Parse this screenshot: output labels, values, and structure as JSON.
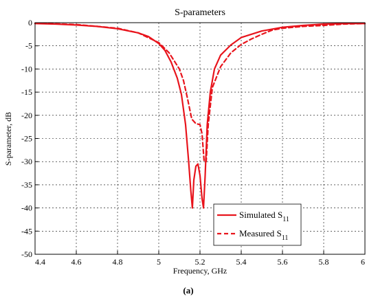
{
  "chart_data": {
    "type": "line",
    "title": "S-parameters",
    "xlabel": "Frequency, GHz",
    "ylabel": "S-parameter, dB",
    "caption": "(a)",
    "xlim": [
      4.4,
      6.0
    ],
    "ylim": [
      -50,
      0
    ],
    "xticks": [
      "4.4",
      "4.6",
      "4.8",
      "5",
      "5.2",
      "5.4",
      "5.6",
      "5.8",
      "6"
    ],
    "yticks": [
      "0",
      "-5",
      "-10",
      "-15",
      "-20",
      "-25",
      "-30",
      "-35",
      "-40",
      "-45",
      "-50"
    ],
    "grid": true,
    "legend_position": "bottom-right",
    "colors": {
      "series": "#e8141c",
      "axis": "#000000",
      "grid": "#000000"
    },
    "series": [
      {
        "name": "Simulated S",
        "name_sub": "11",
        "style": "solid",
        "x": [
          4.4,
          4.5,
          4.6,
          4.7,
          4.8,
          4.9,
          4.95,
          5.0,
          5.03,
          5.06,
          5.09,
          5.11,
          5.13,
          5.145,
          5.155,
          5.163,
          5.17,
          5.18,
          5.19,
          5.2,
          5.21,
          5.217,
          5.225,
          5.235,
          5.25,
          5.27,
          5.3,
          5.35,
          5.4,
          5.5,
          5.6,
          5.7,
          5.8,
          5.9,
          6.0
        ],
        "y": [
          -0.2,
          -0.3,
          -0.5,
          -0.8,
          -1.3,
          -2.2,
          -3.0,
          -4.5,
          -6.0,
          -8.5,
          -12.0,
          -15.5,
          -22.0,
          -30.0,
          -36.0,
          -40.0,
          -34.0,
          -31.0,
          -30.5,
          -33.0,
          -38.0,
          -40.0,
          -33.0,
          -22.0,
          -15.0,
          -10.0,
          -7.0,
          -4.8,
          -3.2,
          -1.8,
          -1.0,
          -0.6,
          -0.3,
          -0.2,
          -0.2
        ]
      },
      {
        "name": "Measured S",
        "name_sub": "11",
        "style": "dashed",
        "x": [
          4.4,
          4.6,
          4.8,
          4.9,
          5.0,
          5.05,
          5.1,
          5.12,
          5.14,
          5.16,
          5.18,
          5.2,
          5.21,
          5.22,
          5.23,
          5.24,
          5.26,
          5.3,
          5.35,
          5.4,
          5.45,
          5.5,
          5.55,
          5.6,
          5.7,
          5.8,
          5.9,
          6.0
        ],
        "y": [
          -0.1,
          -0.4,
          -1.2,
          -2.2,
          -4.3,
          -6.5,
          -10.0,
          -12.5,
          -16.5,
          -20.8,
          -21.8,
          -22.0,
          -24.0,
          -30.0,
          -30.0,
          -22.0,
          -14.0,
          -9.5,
          -6.5,
          -4.7,
          -3.5,
          -2.5,
          -1.6,
          -1.2,
          -0.8,
          -0.6,
          -0.3,
          -0.2
        ]
      }
    ]
  }
}
